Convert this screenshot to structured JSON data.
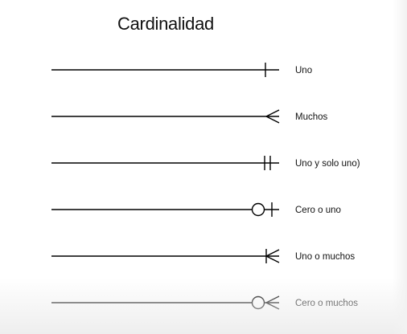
{
  "title": "Cardinalidad",
  "rows": [
    {
      "label": "Uno",
      "notation": "one"
    },
    {
      "label": "Muchos",
      "notation": "many"
    },
    {
      "label": "Uno y solo uno)",
      "notation": "one-and-only-one"
    },
    {
      "label": "Cero o uno",
      "notation": "zero-or-one"
    },
    {
      "label": "Uno o muchos",
      "notation": "one-or-many"
    },
    {
      "label": "Cero o muchos",
      "notation": "zero-or-many"
    }
  ],
  "colors": {
    "line": "#000000",
    "text": "#111111",
    "background": "#ffffff"
  }
}
